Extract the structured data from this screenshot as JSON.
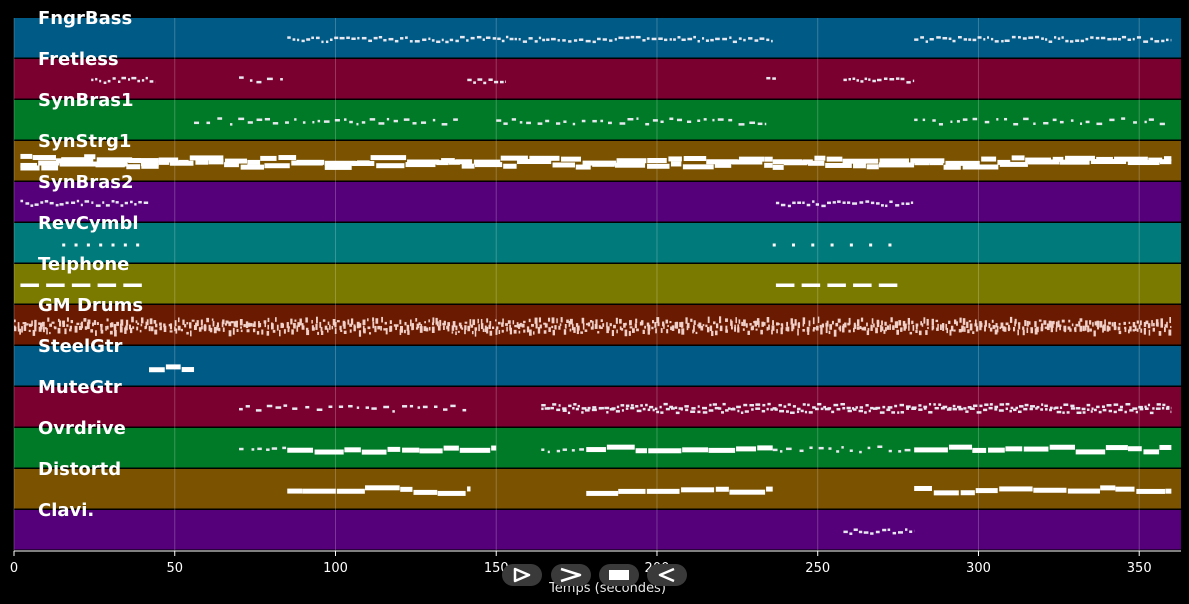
{
  "chart_data": {
    "type": "piano-roll",
    "xlabel": "Temps (secondes)",
    "xlim": [
      0,
      363
    ],
    "xticks": [
      0,
      50,
      100,
      150,
      200,
      250,
      300,
      350
    ],
    "grid": true,
    "tracks": [
      {
        "name": "FngrBass",
        "color": "#005a86",
        "segments": [
          [
            85,
            236,
            "dense",
            1
          ],
          [
            280,
            360,
            "dense",
            1
          ]
        ]
      },
      {
        "name": "Fretless",
        "color": "#7a0030",
        "segments": [
          [
            24,
            44,
            "dense",
            1
          ],
          [
            70,
            85,
            "sparse",
            1
          ],
          [
            141,
            153,
            "dense",
            1
          ],
          [
            234,
            237,
            "dense",
            1
          ],
          [
            258,
            280,
            "dense",
            1
          ]
        ]
      },
      {
        "name": "SynBras1",
        "color": "#007a27",
        "segments": [
          [
            56,
            140,
            "sparse",
            1
          ],
          [
            150,
            234,
            "sparse",
            1
          ],
          [
            280,
            358,
            "sparse",
            1
          ]
        ]
      },
      {
        "name": "SynStrg1",
        "color": "#7a5200",
        "segments": [
          [
            2,
            45,
            "thick",
            3
          ],
          [
            45,
            236,
            "thick",
            2
          ],
          [
            236,
            360,
            "thick",
            2
          ]
        ]
      },
      {
        "name": "SynBras2",
        "color": "#55007a",
        "segments": [
          [
            2,
            42,
            "dense",
            1
          ],
          [
            237,
            280,
            "dense",
            1
          ]
        ]
      },
      {
        "name": "RevCymbl",
        "color": "#007a7a",
        "segments": [
          [
            15,
            38,
            "dots",
            1
          ],
          [
            236,
            272,
            "dots",
            1
          ]
        ]
      },
      {
        "name": "Telphone",
        "color": "#7a7a00",
        "segments": [
          [
            2,
            42,
            "dash",
            1
          ],
          [
            237,
            277,
            "dash",
            1
          ]
        ]
      },
      {
        "name": "GM Drums",
        "color": "#6a1a00",
        "segments": [
          [
            0,
            360,
            "drums",
            3
          ]
        ]
      },
      {
        "name": "SteelGtr",
        "color": "#005a86",
        "segments": [
          [
            42,
            56,
            "thick",
            1
          ]
        ]
      },
      {
        "name": "MuteGtr",
        "color": "#7a0030",
        "segments": [
          [
            70,
            142,
            "sparse",
            1
          ],
          [
            164,
            360,
            "dense",
            2
          ]
        ]
      },
      {
        "name": "Ovrdrive",
        "color": "#007a27",
        "segments": [
          [
            70,
            85,
            "sparse",
            1
          ],
          [
            85,
            150,
            "thick",
            1
          ],
          [
            164,
            178,
            "sparse",
            1
          ],
          [
            178,
            236,
            "thick",
            1
          ],
          [
            236,
            280,
            "sparse",
            1
          ],
          [
            280,
            360,
            "thick",
            1
          ]
        ]
      },
      {
        "name": "Distortd",
        "color": "#7a5200",
        "segments": [
          [
            85,
            142,
            "thick",
            1
          ],
          [
            178,
            236,
            "thick",
            1
          ],
          [
            280,
            360,
            "thick",
            1
          ]
        ]
      },
      {
        "name": "Clavi.",
        "color": "#55007a",
        "segments": [
          [
            258,
            280,
            "dense",
            1
          ]
        ]
      }
    ]
  },
  "controls": [
    {
      "name": "play-button",
      "icon": "play-icon"
    },
    {
      "name": "fast-forward-button",
      "icon": "fast-forward-icon"
    },
    {
      "name": "stop-button",
      "icon": "stop-icon"
    },
    {
      "name": "rewind-button",
      "icon": "rewind-icon"
    }
  ]
}
